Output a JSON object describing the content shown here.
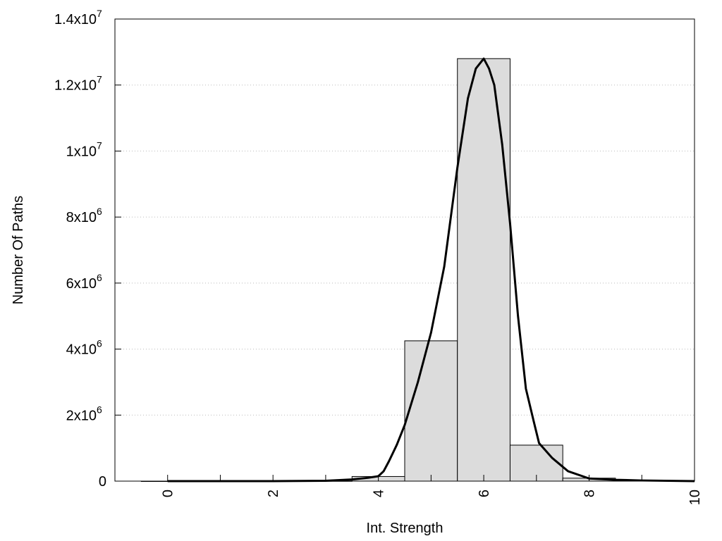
{
  "chart_data": {
    "type": "bar",
    "title": "",
    "xlabel": "Int. Strength",
    "ylabel": "Number Of Paths",
    "xlim": [
      -1,
      10
    ],
    "ylim": [
      0,
      14000000
    ],
    "grid": "horizontal dotted",
    "x_ticks": [
      0,
      1,
      2,
      3,
      4,
      5,
      6,
      7,
      8,
      9,
      10
    ],
    "x_tick_labels": [
      {
        "value": 0,
        "label": "0"
      },
      {
        "value": 2,
        "label": "2"
      },
      {
        "value": 4,
        "label": "4"
      },
      {
        "value": 6,
        "label": "6"
      },
      {
        "value": 8,
        "label": "8"
      },
      {
        "value": 10,
        "label": "10"
      }
    ],
    "y_ticks": [
      {
        "value": 0,
        "mantissa": "0",
        "exp": ""
      },
      {
        "value": 2000000,
        "mantissa": "2x10",
        "exp": "6"
      },
      {
        "value": 4000000,
        "mantissa": "4x10",
        "exp": "6"
      },
      {
        "value": 6000000,
        "mantissa": "6x10",
        "exp": "6"
      },
      {
        "value": 8000000,
        "mantissa": "8x10",
        "exp": "6"
      },
      {
        "value": 10000000,
        "mantissa": "1x10",
        "exp": "7"
      },
      {
        "value": 12000000,
        "mantissa": "1.2x10",
        "exp": "7"
      },
      {
        "value": 14000000,
        "mantissa": "1.4x10",
        "exp": "7"
      }
    ],
    "bars": {
      "categories": [
        0,
        1,
        2,
        3,
        4,
        5,
        6,
        7,
        8
      ],
      "values": [
        0,
        0,
        0,
        5000,
        140000,
        4250000,
        12800000,
        1090000,
        90000
      ],
      "width": 1,
      "color": "#dcdcdc"
    },
    "curve": {
      "x": [
        0,
        1,
        2,
        3,
        3.5,
        3.8,
        4,
        4.1,
        4.2,
        4.35,
        4.5,
        4.75,
        5,
        5.25,
        5.5,
        5.7,
        5.85,
        6,
        6.1,
        6.2,
        6.35,
        6.5,
        6.65,
        6.8,
        6.95,
        7.05,
        7.3,
        7.6,
        8,
        8.5,
        9,
        10
      ],
      "y": [
        0,
        0,
        0,
        10000,
        50000,
        100000,
        150000,
        300000,
        600000,
        1100000,
        1700000,
        3000000,
        4500000,
        6500000,
        9500000,
        11600000,
        12500000,
        12800000,
        12500000,
        12000000,
        10200000,
        7800000,
        5000000,
        2800000,
        1800000,
        1150000,
        700000,
        300000,
        80000,
        40000,
        20000,
        0
      ],
      "color": "#000000"
    }
  }
}
